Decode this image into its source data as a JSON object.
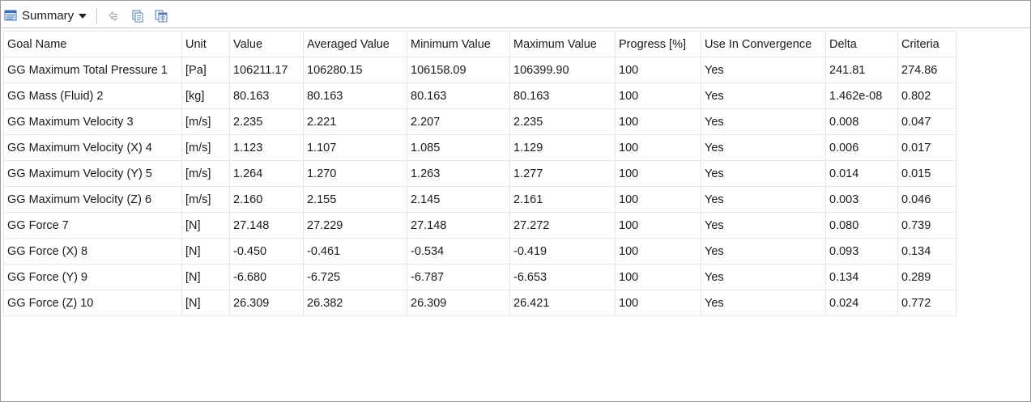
{
  "toolbar": {
    "summary_label": "Summary",
    "icons": [
      "summary-view-icon",
      "refresh-icon",
      "copy-icon",
      "copy-all-icon"
    ]
  },
  "table": {
    "columns": [
      "Goal Name",
      "Unit",
      "Value",
      "Averaged Value",
      "Minimum Value",
      "Maximum Value",
      "Progress [%]",
      "Use In Convergence",
      "Delta",
      "Criteria"
    ],
    "rows": [
      [
        "GG Maximum Total Pressure 1",
        "[Pa]",
        "106211.17",
        "106280.15",
        "106158.09",
        "106399.90",
        "100",
        "Yes",
        "241.81",
        "274.86"
      ],
      [
        "GG Mass (Fluid) 2",
        "[kg]",
        "80.163",
        "80.163",
        "80.163",
        "80.163",
        "100",
        "Yes",
        "1.462e-08",
        "0.802"
      ],
      [
        "GG Maximum Velocity 3",
        "[m/s]",
        "2.235",
        "2.221",
        "2.207",
        "2.235",
        "100",
        "Yes",
        "0.008",
        "0.047"
      ],
      [
        "GG Maximum Velocity (X) 4",
        "[m/s]",
        "1.123",
        "1.107",
        "1.085",
        "1.129",
        "100",
        "Yes",
        "0.006",
        "0.017"
      ],
      [
        "GG Maximum Velocity (Y) 5",
        "[m/s]",
        "1.264",
        "1.270",
        "1.263",
        "1.277",
        "100",
        "Yes",
        "0.014",
        "0.015"
      ],
      [
        "GG Maximum Velocity (Z) 6",
        "[m/s]",
        "2.160",
        "2.155",
        "2.145",
        "2.161",
        "100",
        "Yes",
        "0.003",
        "0.046"
      ],
      [
        "GG Force 7",
        "[N]",
        "27.148",
        "27.229",
        "27.148",
        "27.272",
        "100",
        "Yes",
        "0.080",
        "0.739"
      ],
      [
        "GG Force (X) 8",
        "[N]",
        "-0.450",
        "-0.461",
        "-0.534",
        "-0.419",
        "100",
        "Yes",
        "0.093",
        "0.134"
      ],
      [
        "GG Force (Y) 9",
        "[N]",
        "-6.680",
        "-6.725",
        "-6.787",
        "-6.653",
        "100",
        "Yes",
        "0.134",
        "0.289"
      ],
      [
        "GG Force (Z) 10",
        "[N]",
        "26.309",
        "26.382",
        "26.309",
        "26.421",
        "100",
        "Yes",
        "0.024",
        "0.772"
      ]
    ]
  }
}
